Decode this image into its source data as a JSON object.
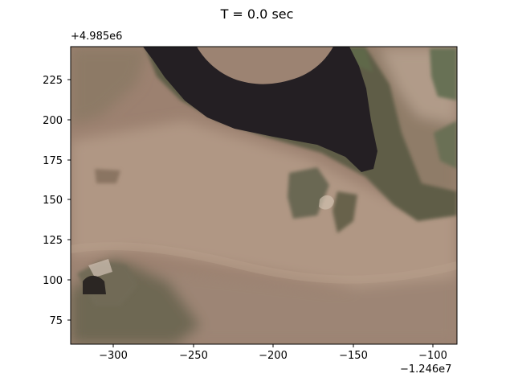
{
  "figure": {
    "title": "T = 0.0 sec"
  },
  "axes": {
    "x_offset_label": "−1.246e7",
    "y_offset_label": "+4.985e6",
    "x_range": [
      -325,
      -85
    ],
    "y_range": [
      60,
      246
    ],
    "x_ticks": [
      "−300",
      "−250",
      "−200",
      "−150",
      "−100"
    ],
    "y_ticks": [
      "225",
      "200",
      "175",
      "150",
      "125",
      "100",
      "75"
    ]
  },
  "map": {
    "layers": [
      "aerial-imagery"
    ],
    "features": [
      "pond",
      "dirt-area",
      "vegetation",
      "shoreline"
    ]
  },
  "colors": {
    "water": "#241f23",
    "ground": "#9c8170",
    "vegetation": "#5f5d46",
    "light_ground": "#b29c88"
  }
}
